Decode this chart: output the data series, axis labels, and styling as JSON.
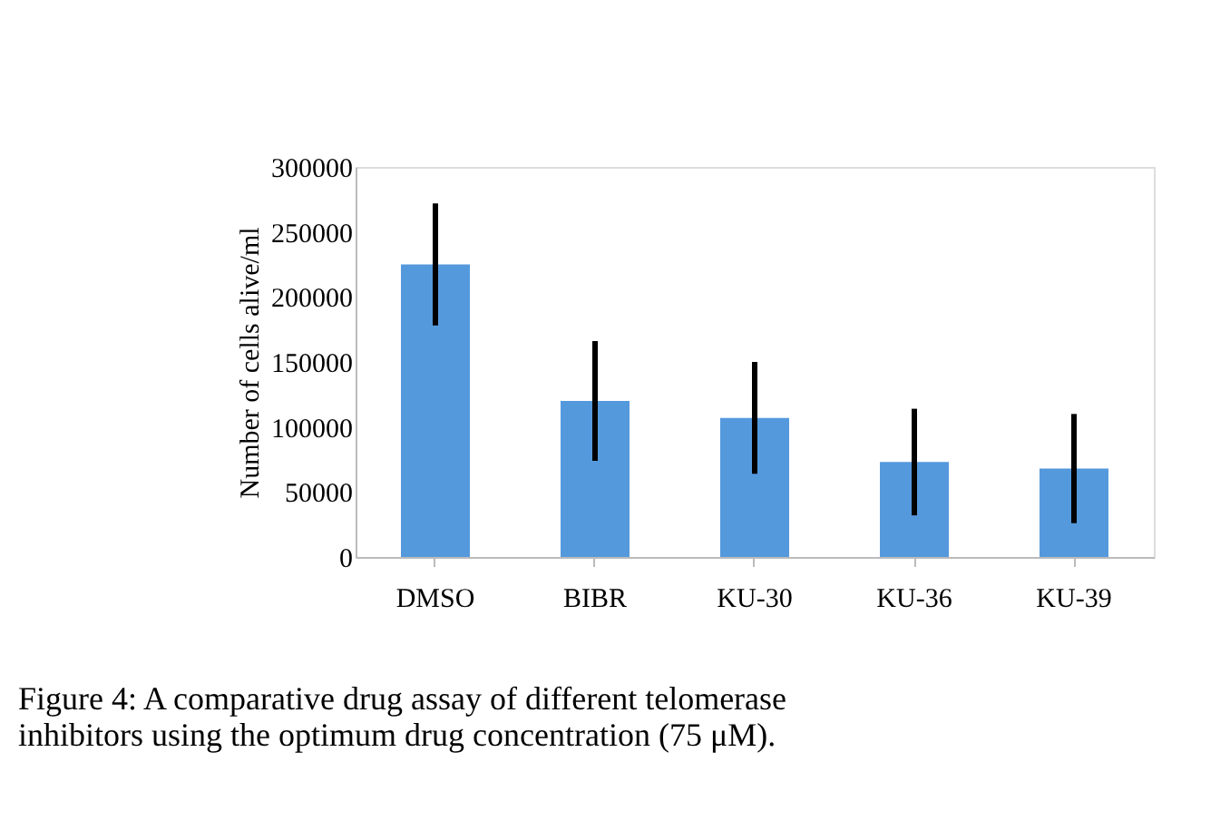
{
  "chart_data": {
    "type": "bar",
    "ylabel": "Number of cells alive/ml",
    "categories": [
      "DMSO",
      "BIBR",
      "KU-30",
      "KU-36",
      "KU-39"
    ],
    "values": [
      225000,
      120000,
      107000,
      73000,
      68000
    ],
    "errors": [
      47000,
      46000,
      43000,
      41000,
      42000
    ],
    "color": "#5599dd",
    "ylim": [
      0,
      300000
    ],
    "yticks": [
      0,
      50000,
      100000,
      150000,
      200000,
      250000,
      300000
    ],
    "grid": false,
    "annotations": [
      "Figure 4: A comparative drug assay of different telomerase inhibitors using the optimum drug concentration (75 μM)."
    ]
  }
}
